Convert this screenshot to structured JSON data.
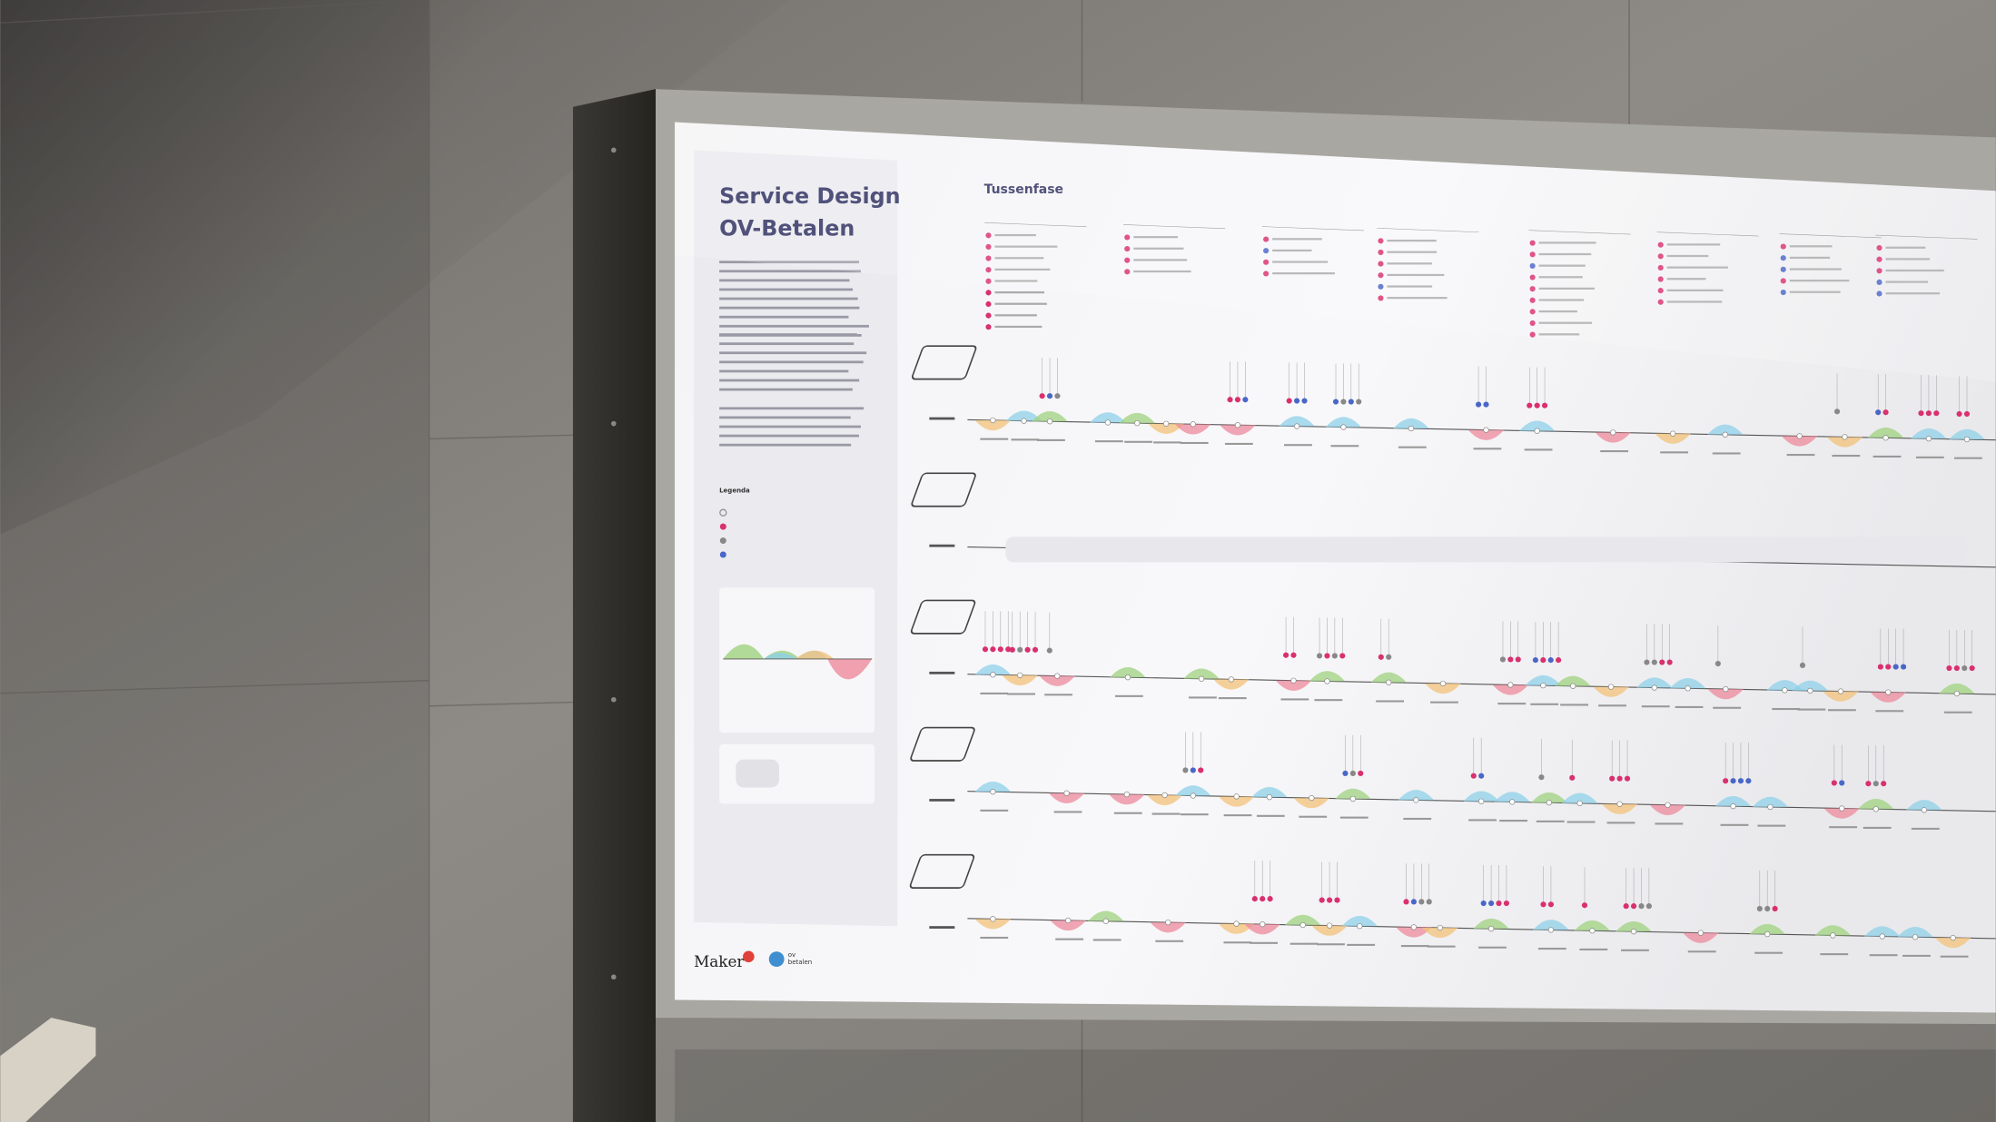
{
  "poster": {
    "title": [
      "Service Design",
      "OV-Betalen"
    ],
    "section_title": "Tussenfase",
    "legend_title": "Legenda",
    "logos": {
      "maker": "Maker",
      "ov": "ov",
      "betalen": "betalen"
    }
  }
}
